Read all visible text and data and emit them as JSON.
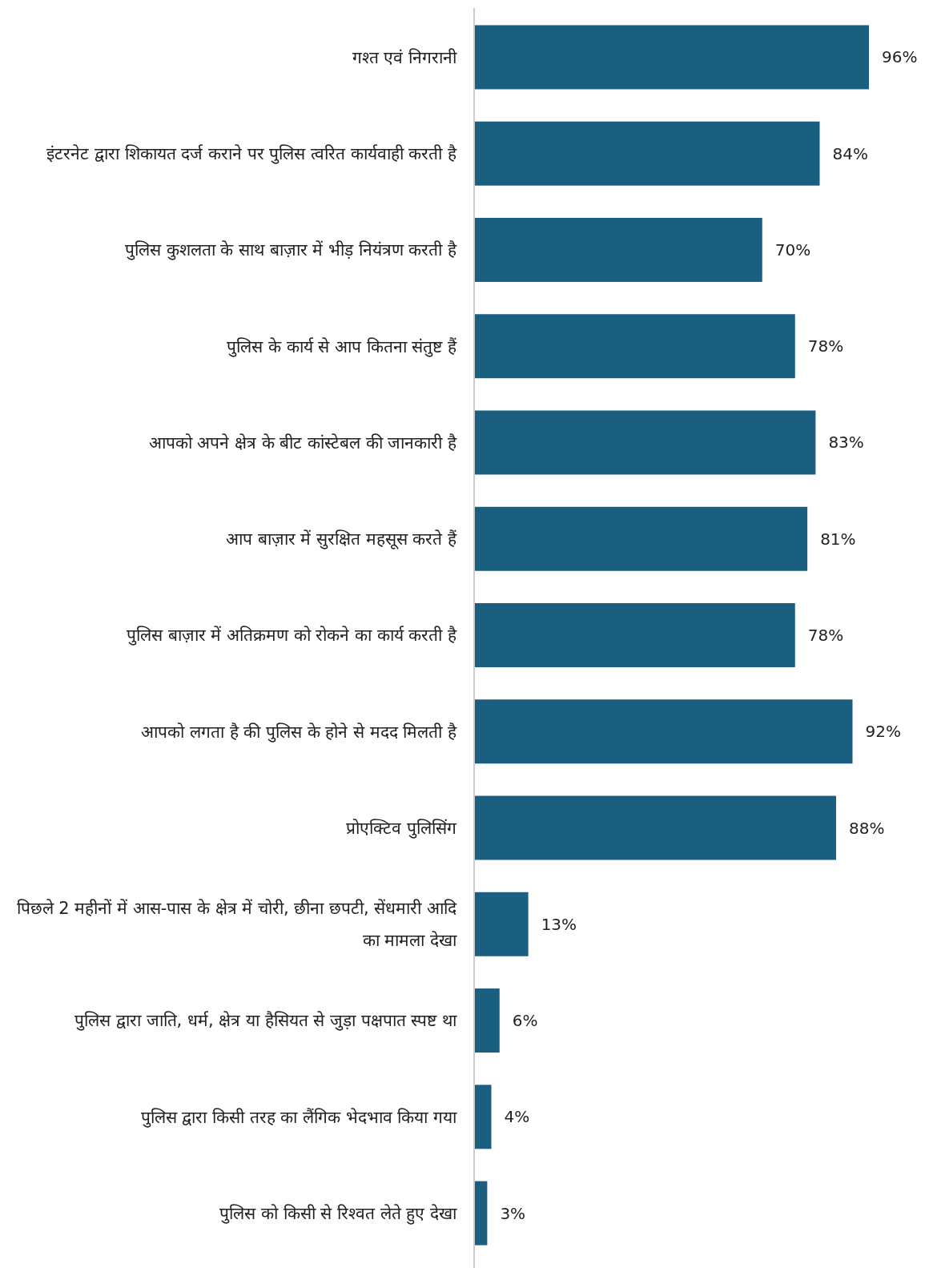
{
  "chart_data": {
    "type": "bar",
    "orientation": "horizontal",
    "categories": [
      "गश्त एवं निगरानी",
      "इंटरनेट द्वारा शिकायत दर्ज कराने पर पुलिस त्वरित कार्यवाही करती है",
      "पुलिस कुशलता के साथ बाज़ार में भीड़ नियंत्रण करती है",
      "पुलिस के कार्य से आप कितना संतुष्ट हैं",
      "आपको अपने क्षेत्र के बीट कांस्टेबल की जानकारी है",
      "आप बाज़ार में सुरक्षित महसूस करते हैं",
      "पुलिस बाज़ार में अतिक्रमण को रोकने का कार्य करती है",
      "आपको लगता है की पुलिस के होने से मदद मिलती है",
      "प्रोएक्टिव पुलिसिंग",
      "पिछले 2 महीनों में आस-पास के क्षेत्र में चोरी, छीना छपटी, सेंधमारी आदि का मामला देखा",
      "पुलिस द्वारा जाति, धर्म, क्षेत्र या हैसियत से जुड़ा पक्षपात स्पष्ट था",
      "पुलिस द्वारा किसी तरह का लैंगिक भेदभाव किया गया",
      "पुलिस को किसी से रिश्वत लेते हुए देखा"
    ],
    "values": [
      96,
      84,
      70,
      78,
      83,
      81,
      78,
      92,
      88,
      13,
      6,
      4,
      3
    ],
    "value_labels": [
      "96%",
      "84%",
      "70%",
      "78%",
      "83%",
      "81%",
      "78%",
      "92%",
      "88%",
      "13%",
      "6%",
      "4%",
      "3%"
    ],
    "color": "#1a5e80"
  }
}
